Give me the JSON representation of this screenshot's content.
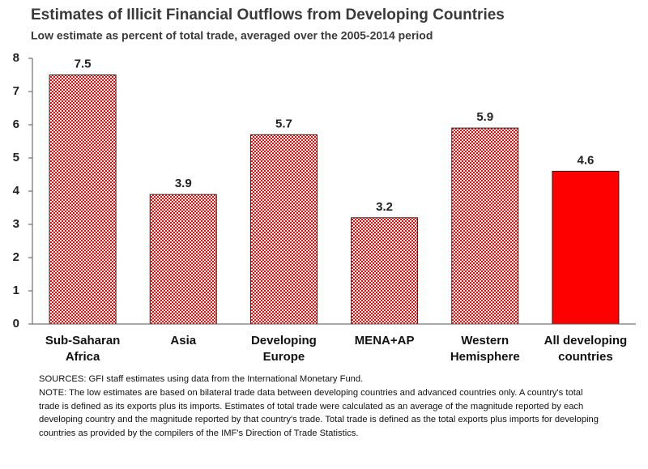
{
  "chart_data": {
    "type": "bar",
    "title": "Estimates of Illicit Financial Outflows from Developing Countries",
    "subtitle": "Low estimate as percent of total trade, averaged over the 2005-2014 period",
    "categories": [
      "Sub-Saharan Africa",
      "Asia",
      "Developing Europe",
      "MENA+AP",
      "Western Hemisphere",
      "All developing countries"
    ],
    "values": [
      7.5,
      3.9,
      5.7,
      3.2,
      5.9,
      4.6
    ],
    "color": "#ff0000",
    "bar_fills": [
      "dotted",
      "dotted",
      "dotted",
      "dotted",
      "dotted",
      "solid"
    ],
    "ylim": [
      0,
      8
    ],
    "yticks": [
      0,
      1,
      2,
      3,
      4,
      5,
      6,
      7,
      8
    ],
    "grid": false,
    "sources": "SOURCES: GFI staff estimates using data from the International Monetary Fund.",
    "note": "NOTE: The low estimates are based on bilateral trade data between developing countries and advanced countries only.  A country's total trade is defined as its exports plus its imports.  Estimates of total trade were calculated as an average of the magnitude reported by each developing country and the magnitude reported by that country's trade. Total trade is defined as the total exports plus imports for developing countries as provided by the compilers of the IMF's Direction of Trade Statistics."
  }
}
